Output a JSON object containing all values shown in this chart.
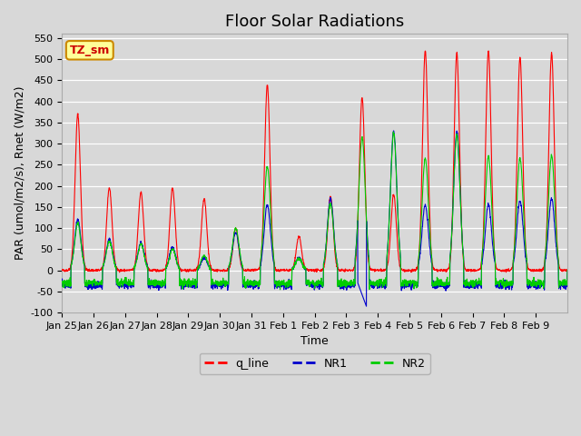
{
  "title": "Floor Solar Radiations",
  "xlabel": "Time",
  "ylabel": "PAR (umol/m2/s), Rnet (W/m2)",
  "ylim": [
    -100,
    560
  ],
  "yticks": [
    -100,
    -50,
    0,
    50,
    100,
    150,
    200,
    250,
    300,
    350,
    400,
    450,
    500,
    550
  ],
  "xtick_labels": [
    "Jan 25",
    "Jan 26",
    "Jan 27",
    "Jan 28",
    "Jan 29",
    "Jan 30",
    "Jan 31",
    "Feb 1",
    "Feb 2",
    "Feb 3",
    "Feb 4",
    "Feb 5",
    "Feb 6",
    "Feb 7",
    "Feb 8",
    "Feb 9"
  ],
  "legend_labels": [
    "q_line",
    "NR1",
    "NR2"
  ],
  "legend_colors": [
    "#ff0000",
    "#0000cc",
    "#00cc00"
  ],
  "annotation_text": "TZ_sm",
  "annotation_bg": "#ffff99",
  "annotation_border": "#cc8800",
  "bg_color": "#d8d8d8",
  "grid_color": "#ffffff",
  "title_fontsize": 13,
  "label_fontsize": 9,
  "tick_fontsize": 8,
  "n_days": 16,
  "points_per_day": 144
}
